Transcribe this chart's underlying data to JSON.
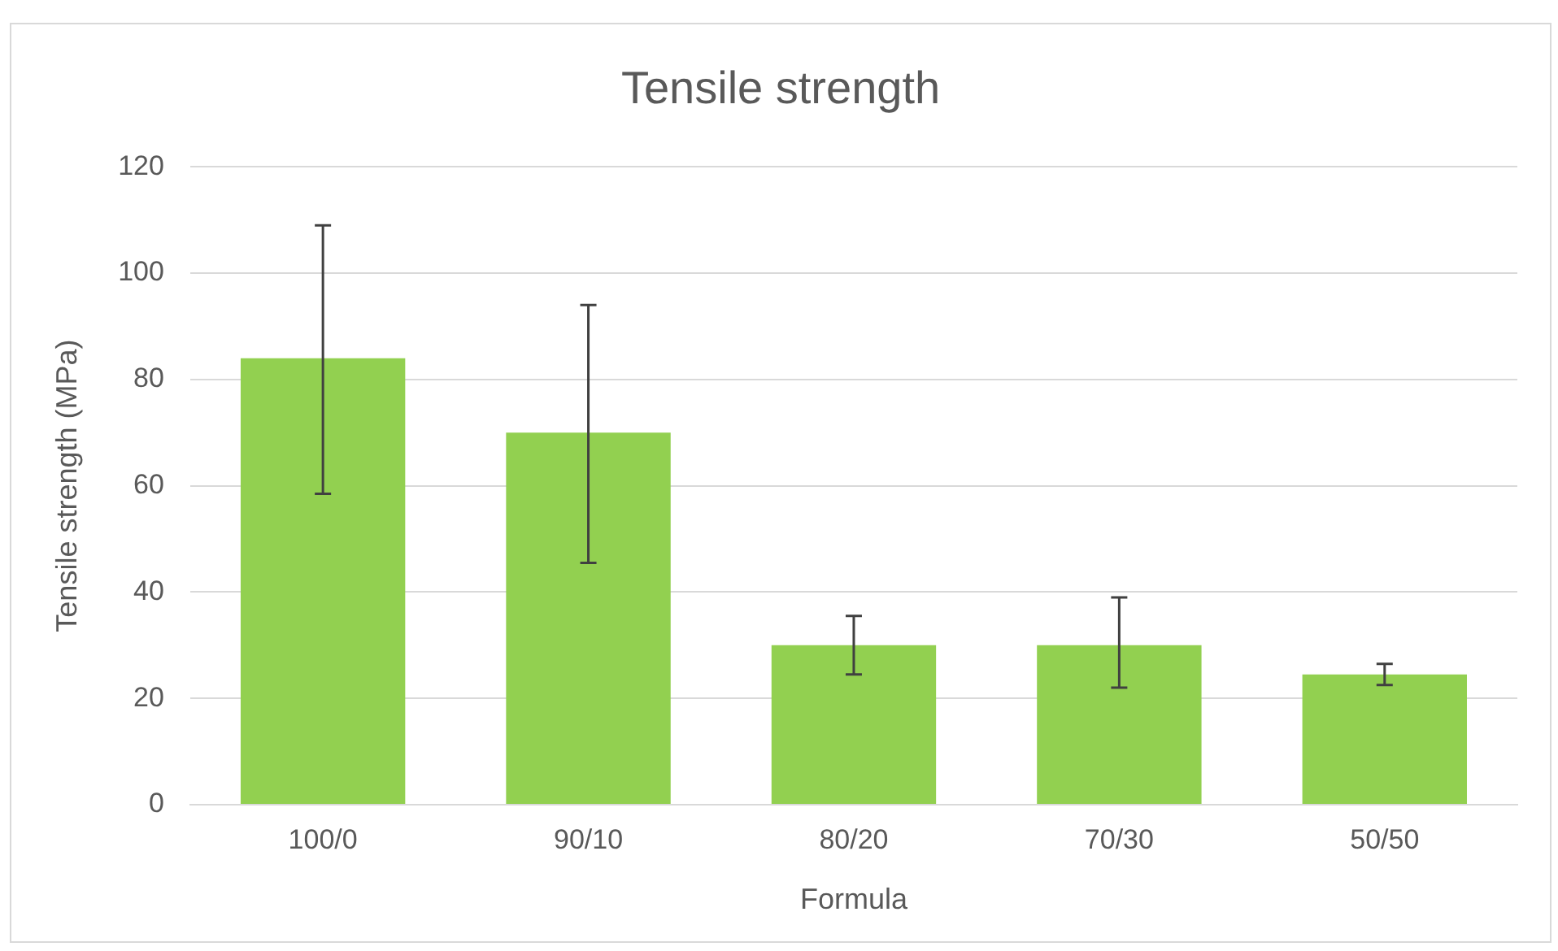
{
  "chart_data": {
    "type": "bar",
    "title": "Tensile strength",
    "xlabel": "Formula",
    "ylabel": "Tensile strength (MPa)",
    "categories": [
      "100/0",
      "90/10",
      "80/20",
      "70/30",
      "50/50"
    ],
    "values": [
      84,
      70,
      30,
      30,
      24.5
    ],
    "errors": [
      [
        58.5,
        109
      ],
      [
        45.5,
        94
      ],
      [
        24.5,
        35.5
      ],
      [
        22,
        39
      ],
      [
        22.5,
        26.5
      ]
    ],
    "color": "#92d050",
    "ylim": [
      0,
      120
    ],
    "yticks": [
      0,
      20,
      40,
      60,
      80,
      100,
      120
    ],
    "grid": "y",
    "legend": false
  }
}
